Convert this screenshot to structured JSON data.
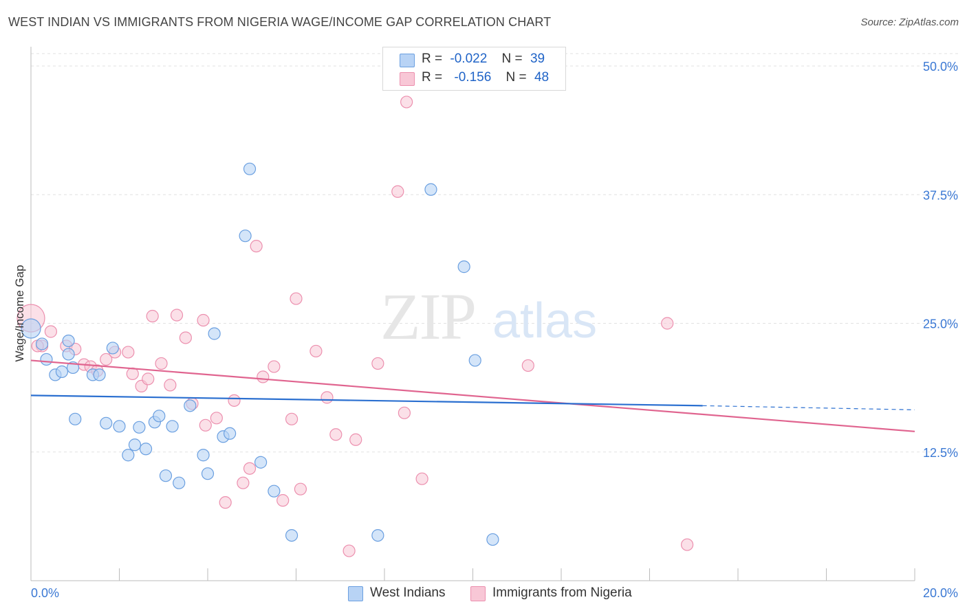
{
  "header": {
    "title": "WEST INDIAN VS IMMIGRANTS FROM NIGERIA WAGE/INCOME GAP CORRELATION CHART",
    "source": "Source: ZipAtlas.com"
  },
  "legend": {
    "series1": {
      "r_label": "R =",
      "r_value": "-0.022",
      "n_label": "N =",
      "n_value": "39"
    },
    "series2": {
      "r_label": "R =",
      "r_value": "-0.156",
      "n_label": "N =",
      "n_value": "48"
    }
  },
  "watermark": {
    "zip": "ZIP",
    "atlas": "atlas"
  },
  "colors": {
    "blue_fill": "#b8d3f5",
    "blue_stroke": "#6a9fe0",
    "blue_line": "#2a6fd0",
    "pink_fill": "#f8c7d6",
    "pink_stroke": "#ec8fae",
    "pink_line": "#e0648f",
    "axis_label": "#3a78d4"
  },
  "chart_data": {
    "type": "scatter",
    "title": "WEST INDIAN VS IMMIGRANTS FROM NIGERIA WAGE/INCOME GAP CORRELATION CHART",
    "xlabel": "",
    "ylabel": "Wage/Income Gap",
    "xlim": [
      0,
      20
    ],
    "ylim": [
      0,
      50
    ],
    "x_tick_labels": [
      "0.0%",
      "20.0%"
    ],
    "y_ticks": [
      12.5,
      25.0,
      37.5,
      50.0
    ],
    "y_tick_labels": [
      "12.5%",
      "25.0%",
      "37.5%",
      "50.0%"
    ],
    "series": [
      {
        "name": "West Indians",
        "color": "#6a9fe0",
        "points": [
          [
            0.0,
            24.5
          ],
          [
            0.25,
            23.0
          ],
          [
            0.35,
            21.5
          ],
          [
            0.55,
            20.0
          ],
          [
            0.7,
            20.3
          ],
          [
            0.85,
            23.3
          ],
          [
            0.85,
            22.0
          ],
          [
            0.95,
            20.7
          ],
          [
            1.0,
            15.7
          ],
          [
            1.4,
            20.0
          ],
          [
            1.55,
            20.0
          ],
          [
            1.7,
            15.3
          ],
          [
            1.85,
            22.6
          ],
          [
            2.0,
            15.0
          ],
          [
            2.2,
            12.2
          ],
          [
            2.35,
            13.2
          ],
          [
            2.45,
            14.9
          ],
          [
            2.6,
            12.8
          ],
          [
            2.8,
            15.4
          ],
          [
            2.9,
            16.0
          ],
          [
            3.05,
            10.2
          ],
          [
            3.2,
            15.0
          ],
          [
            3.35,
            9.5
          ],
          [
            3.6,
            17.0
          ],
          [
            3.9,
            12.2
          ],
          [
            4.0,
            10.4
          ],
          [
            4.15,
            24.0
          ],
          [
            4.35,
            14.0
          ],
          [
            4.5,
            14.3
          ],
          [
            4.85,
            33.5
          ],
          [
            4.95,
            40.0
          ],
          [
            5.2,
            11.5
          ],
          [
            5.5,
            8.7
          ],
          [
            5.9,
            4.4
          ],
          [
            7.85,
            4.4
          ],
          [
            9.05,
            38.0
          ],
          [
            9.8,
            30.5
          ],
          [
            10.05,
            21.4
          ],
          [
            10.45,
            4.0
          ]
        ],
        "trend": {
          "x": [
            0.0,
            15.2
          ],
          "y": [
            18.0,
            17.0
          ],
          "dashed_extension": {
            "x": [
              15.2,
              20.0
            ],
            "y": [
              17.0,
              16.6
            ]
          }
        }
      },
      {
        "name": "Immigrants from Nigeria",
        "color": "#ec8fae",
        "points": [
          [
            0.0,
            25.5
          ],
          [
            0.25,
            22.8
          ],
          [
            0.45,
            24.2
          ],
          [
            0.8,
            22.8
          ],
          [
            1.0,
            22.5
          ],
          [
            1.2,
            21.0
          ],
          [
            1.35,
            20.8
          ],
          [
            1.5,
            20.4
          ],
          [
            1.7,
            21.5
          ],
          [
            1.9,
            22.2
          ],
          [
            2.2,
            22.2
          ],
          [
            2.3,
            20.1
          ],
          [
            2.5,
            18.9
          ],
          [
            2.65,
            19.6
          ],
          [
            2.75,
            25.7
          ],
          [
            2.95,
            21.1
          ],
          [
            3.15,
            19.0
          ],
          [
            3.3,
            25.8
          ],
          [
            3.5,
            23.6
          ],
          [
            3.65,
            17.2
          ],
          [
            3.9,
            25.3
          ],
          [
            3.95,
            15.1
          ],
          [
            4.2,
            15.8
          ],
          [
            4.4,
            7.6
          ],
          [
            4.6,
            17.5
          ],
          [
            4.8,
            9.5
          ],
          [
            4.95,
            10.9
          ],
          [
            5.1,
            32.5
          ],
          [
            5.25,
            19.8
          ],
          [
            5.5,
            20.8
          ],
          [
            5.7,
            7.8
          ],
          [
            5.9,
            15.7
          ],
          [
            6.0,
            27.4
          ],
          [
            6.1,
            8.9
          ],
          [
            6.45,
            22.3
          ],
          [
            6.7,
            17.8
          ],
          [
            6.9,
            14.2
          ],
          [
            7.2,
            2.9
          ],
          [
            7.35,
            13.7
          ],
          [
            7.85,
            21.1
          ],
          [
            8.3,
            37.8
          ],
          [
            8.45,
            16.3
          ],
          [
            8.5,
            46.5
          ],
          [
            8.85,
            9.9
          ],
          [
            11.25,
            20.9
          ],
          [
            14.4,
            25.0
          ],
          [
            14.85,
            3.5
          ],
          [
            0.15,
            22.8
          ]
        ],
        "trend": {
          "x": [
            0.0,
            20.0
          ],
          "y": [
            21.4,
            14.5
          ]
        }
      }
    ],
    "legend_position": "top-center"
  },
  "bottom_legend": {
    "item1": "West Indians",
    "item2": "Immigrants from Nigeria"
  }
}
